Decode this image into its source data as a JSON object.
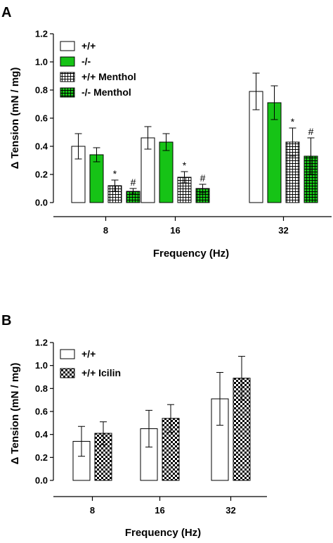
{
  "colors": {
    "green": "#16c316",
    "white": "#ffffff",
    "black": "#000000"
  },
  "chart_data": [
    {
      "type": "bar",
      "panel_label": "A",
      "xlabel": "Frequency (Hz)",
      "ylabel": "Δ Tension (mN / mg)",
      "ylim": [
        0,
        1.2
      ],
      "yticks": [
        "0.0",
        "0.2",
        "0.4",
        "0.6",
        "0.8",
        "1.0",
        "1.2"
      ],
      "categories": [
        "8",
        "16",
        "32"
      ],
      "legend_placement": "top-left",
      "series": [
        {
          "name": "+/+",
          "pattern": "white",
          "values": [
            0.4,
            0.46,
            0.79
          ],
          "errors": [
            0.09,
            0.08,
            0.13
          ],
          "annotations": [
            "",
            "",
            ""
          ]
        },
        {
          "name": "-/-",
          "pattern": "green",
          "values": [
            0.34,
            0.43,
            0.71
          ],
          "errors": [
            0.05,
            0.06,
            0.12
          ],
          "annotations": [
            "",
            "",
            ""
          ]
        },
        {
          "name": "+/+ Menthol",
          "pattern": "white-grid",
          "values": [
            0.12,
            0.18,
            0.43
          ],
          "errors": [
            0.04,
            0.04,
            0.1
          ],
          "annotations": [
            "*",
            "*",
            "*"
          ]
        },
        {
          "name": "-/- Menthol",
          "pattern": "green-grid",
          "values": [
            0.08,
            0.1,
            0.33
          ],
          "errors": [
            0.02,
            0.03,
            0.13
          ],
          "annotations": [
            "#",
            "#",
            "#"
          ]
        }
      ]
    },
    {
      "type": "bar",
      "panel_label": "B",
      "xlabel": "Frequency (Hz)",
      "ylabel": "Δ Tension (mN / mg)",
      "ylim": [
        0,
        1.2
      ],
      "yticks": [
        "0.0",
        "0.2",
        "0.4",
        "0.6",
        "0.8",
        "1.0",
        "1.2"
      ],
      "categories": [
        "8",
        "16",
        "32"
      ],
      "legend_placement": "top-left",
      "series": [
        {
          "name": "+/+",
          "pattern": "white",
          "values": [
            0.34,
            0.45,
            0.71
          ],
          "errors": [
            0.13,
            0.16,
            0.23
          ],
          "annotations": [
            "",
            "",
            ""
          ]
        },
        {
          "name": "+/+ Icilin",
          "pattern": "checker",
          "values": [
            0.41,
            0.54,
            0.89
          ],
          "errors": [
            0.1,
            0.12,
            0.19
          ],
          "annotations": [
            "",
            "",
            ""
          ]
        }
      ]
    }
  ]
}
